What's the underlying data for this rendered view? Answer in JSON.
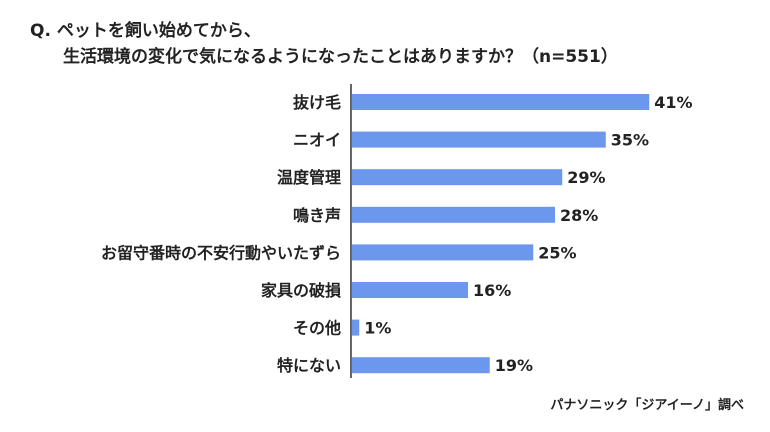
{
  "question": {
    "line1": "Q. ペットを飼い始めてから、",
    "line2": "生活環境の変化で気になるようになったことはありますか？（n=551）"
  },
  "source": "パナソニック「ジアイーノ」調べ",
  "colors": {
    "bar": "#6b97ec",
    "axis": "#333333",
    "text": "#222222"
  },
  "chart_data": {
    "type": "bar",
    "orientation": "horizontal",
    "categories": [
      "抜け毛",
      "ニオイ",
      "温度管理",
      "鳴き声",
      "お留守番時の不安行動やいたずら",
      "家具の破損",
      "その他",
      "特にない"
    ],
    "values": [
      41,
      35,
      29,
      28,
      25,
      16,
      1,
      19
    ],
    "value_labels": [
      "41%",
      "35%",
      "29%",
      "28%",
      "25%",
      "16%",
      "1%",
      "19%"
    ],
    "unit": "%",
    "xlim": [
      0,
      45
    ],
    "grid": false,
    "legend": "none"
  }
}
